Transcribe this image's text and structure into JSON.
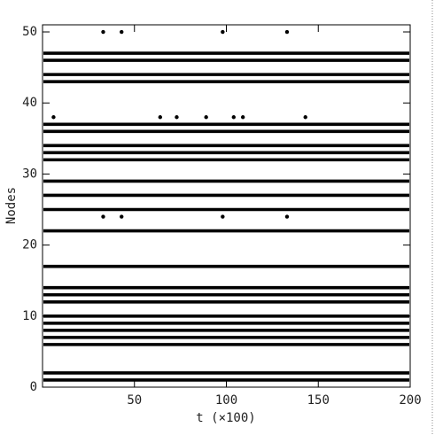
{
  "chart_data": {
    "type": "raster",
    "x_label": "t (×100)",
    "y_label": "Nodes",
    "xlim": [
      0,
      200
    ],
    "xticks": [
      50,
      100,
      150,
      200
    ],
    "ylim": [
      0,
      51
    ],
    "yticks": [
      0,
      10,
      20,
      30,
      40,
      50
    ],
    "color": "#000000",
    "continuous_nodes": [
      1,
      2,
      6,
      7,
      8,
      9,
      10,
      12,
      13,
      14,
      17,
      22,
      25,
      27,
      29,
      32,
      33,
      34,
      36,
      37,
      43,
      44,
      46,
      47
    ],
    "spikes": [
      {
        "node": 50,
        "t": [
          33,
          43,
          98,
          133
        ]
      },
      {
        "node": 38,
        "t": [
          6,
          64,
          73,
          89,
          104,
          109,
          143
        ]
      },
      {
        "node": 24,
        "t": [
          33,
          43,
          98,
          133
        ]
      }
    ]
  }
}
